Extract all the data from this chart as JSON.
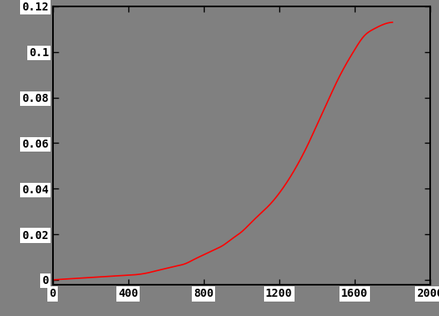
{
  "x_min": 0,
  "x_max": 2000,
  "y_min": -0.002,
  "y_max": 0.12,
  "x_ticks": [
    0,
    400,
    800,
    1200,
    1600,
    2000
  ],
  "y_ticks": [
    0,
    0.02,
    0.04,
    0.06,
    0.08,
    0.1,
    0.12
  ],
  "line_color": "#ff0000",
  "background_color": "#808080",
  "figure_background": "#808080",
  "line_width": 1.2,
  "curve_points_x": [
    0,
    100,
    200,
    300,
    400,
    500,
    550,
    600,
    650,
    700,
    750,
    800,
    850,
    900,
    950,
    1000,
    1050,
    1100,
    1150,
    1200,
    1250,
    1300,
    1350,
    1400,
    1450,
    1500,
    1550,
    1600,
    1650,
    1700,
    1750,
    1800
  ],
  "curve_points_y": [
    0.0,
    0.0005,
    0.001,
    0.0015,
    0.002,
    0.003,
    0.004,
    0.005,
    0.006,
    0.007,
    0.009,
    0.011,
    0.013,
    0.015,
    0.018,
    0.021,
    0.025,
    0.029,
    0.033,
    0.038,
    0.044,
    0.051,
    0.059,
    0.068,
    0.077,
    0.086,
    0.094,
    0.101,
    0.107,
    0.11,
    0.112,
    0.113
  ]
}
